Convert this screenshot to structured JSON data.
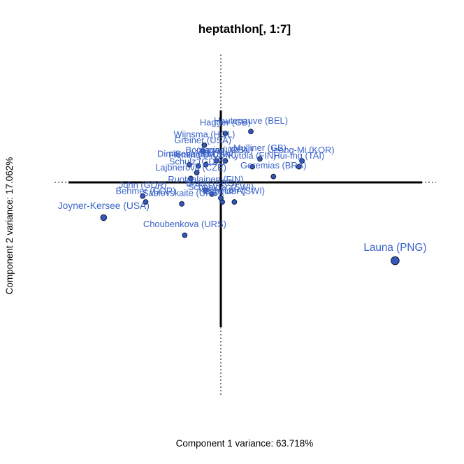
{
  "chart_data": {
    "type": "scatter",
    "title": "heptathlon[, 1:7]",
    "xlabel": "Component 1 variance: 63.718%",
    "ylabel": "Component 2 variance: 17.062%",
    "xlim": [
      -4.5,
      6.5
    ],
    "ylim": [
      -5.5,
      3.5
    ],
    "grid": false,
    "colors": {
      "point_fill": "#3558b8",
      "label": "#3a63c9",
      "axis": "#000000"
    },
    "points": [
      {
        "label": "Joyner-Kersee (USA)",
        "x": -3.9,
        "y": -0.9,
        "size": 1.6
      },
      {
        "label": "Launa (PNG)",
        "x": 5.8,
        "y": -2.0,
        "size": 2.9
      },
      {
        "label": "Hautenauve (BEL)",
        "x": 1.0,
        "y": 1.3,
        "size": 1.0
      },
      {
        "label": "Hagger (GB)",
        "x": 0.15,
        "y": 1.25,
        "size": 1.0
      },
      {
        "label": "Wijnsma (HOL)",
        "x": -0.55,
        "y": 0.95,
        "size": 1.0
      },
      {
        "label": "Greiner (USA)",
        "x": -0.6,
        "y": 0.8,
        "size": 1.0
      },
      {
        "label": "Bouraga (URS)",
        "x": -0.15,
        "y": 0.55,
        "size": 1.0
      },
      {
        "label": "Yuping (CHN)",
        "x": 0.15,
        "y": 0.55,
        "size": 1.0
      },
      {
        "label": "Dimitrova (BUL)",
        "x": -1.05,
        "y": 0.45,
        "size": 1.0
      },
      {
        "label": "Fleming (AUS)",
        "x": -0.75,
        "y": 0.42,
        "size": 1.0
      },
      {
        "label": "Scheider (SWI)",
        "x": -0.5,
        "y": 0.45,
        "size": 1.0
      },
      {
        "label": "Mulliner (GB)",
        "x": 1.3,
        "y": 0.6,
        "size": 1.0
      },
      {
        "label": "Kytola (FIN)",
        "x": 1.05,
        "y": 0.4,
        "size": 1.0
      },
      {
        "label": "Jeong-Mi (KOR)",
        "x": 2.7,
        "y": 0.55,
        "size": 1.0
      },
      {
        "label": "Hui-Ing (TAI)",
        "x": 2.6,
        "y": 0.4,
        "size": 1.0
      },
      {
        "label": "Geremias (BRA)",
        "x": 1.75,
        "y": 0.15,
        "size": 1.0
      },
      {
        "label": "Schulz (GDR)",
        "x": -0.8,
        "y": 0.25,
        "size": 1.0
      },
      {
        "label": "Lajbnerova (CZE)",
        "x": -1.0,
        "y": 0.1,
        "size": 1.0
      },
      {
        "label": "John (GDR)",
        "x": -2.6,
        "y": -0.35,
        "size": 1.0
      },
      {
        "label": "Behmer (GDR)",
        "x": -2.5,
        "y": -0.5,
        "size": 1.0
      },
      {
        "label": "Sablovskaite (URS)",
        "x": -1.3,
        "y": -0.55,
        "size": 1.0
      },
      {
        "label": "Choubenkova (URS)",
        "x": -1.2,
        "y": -1.35,
        "size": 1.0
      },
      {
        "label": "Braun (FRG)",
        "x": -0.3,
        "y": -0.3,
        "size": 1.0
      },
      {
        "label": "Ruotsalainen (FIN)",
        "x": -0.5,
        "y": -0.2,
        "size": 1.0
      },
      {
        "label": "Kelly (USA)",
        "x": 0.05,
        "y": -0.5,
        "size": 1.0
      },
      {
        "label": "Scheider (SWI)",
        "x": 0.45,
        "y": -0.5,
        "size": 1.0
      },
      {
        "label": "Schneider (SWI)",
        "x": 0.0,
        "y": -0.4,
        "size": 1.0
      }
    ]
  }
}
